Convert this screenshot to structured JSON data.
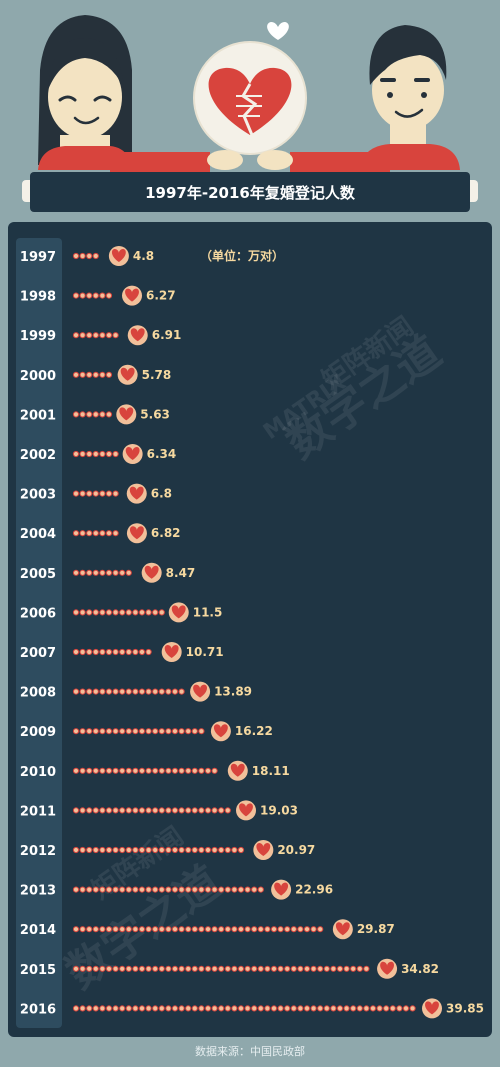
{
  "title": "1997年-2016年复婚登记人数",
  "unit_note": "（单位：万对）",
  "source": "数据来源：中国民政部",
  "watermark": {
    "latin": "MATRIX",
    "cn1": "数字之道",
    "cn2": "矩阵新闻"
  },
  "colors": {
    "background": "#8fa8ac",
    "panel": "#1f3544",
    "year_column": "#2e4c5f",
    "heart": "#d8443d",
    "bead": "#f2c09a",
    "value_text": "#f6d9a0"
  },
  "icons": [
    "woman-figure",
    "man-figure",
    "broken-heart-icon",
    "small-heart-icon",
    "heart-marker-icon"
  ],
  "chart_data": {
    "type": "bar",
    "title": "1997年-2016年复婚登记人数",
    "unit": "万对",
    "orientation": "horizontal",
    "categories": [
      "1997",
      "1998",
      "1999",
      "2000",
      "2001",
      "2002",
      "2003",
      "2004",
      "2005",
      "2006",
      "2007",
      "2008",
      "2009",
      "2010",
      "2011",
      "2012",
      "2013",
      "2014",
      "2015",
      "2016"
    ],
    "values": [
      4.8,
      6.27,
      6.91,
      5.78,
      5.63,
      6.34,
      6.8,
      6.82,
      8.47,
      11.5,
      10.71,
      13.89,
      16.22,
      18.11,
      19.03,
      20.97,
      22.96,
      29.87,
      34.82,
      39.85
    ],
    "value_labels": [
      "4.8",
      "6.27",
      "6.91",
      "5.78",
      "5.63",
      "6.34",
      "6.8",
      "6.82",
      "8.47",
      "11.5",
      "10.71",
      "13.89",
      "16.22",
      "18.11",
      "19.03",
      "20.97",
      "22.96",
      "29.87",
      "34.82",
      "39.85"
    ],
    "xlim": [
      0,
      40
    ],
    "grid": false,
    "legend": "none"
  }
}
